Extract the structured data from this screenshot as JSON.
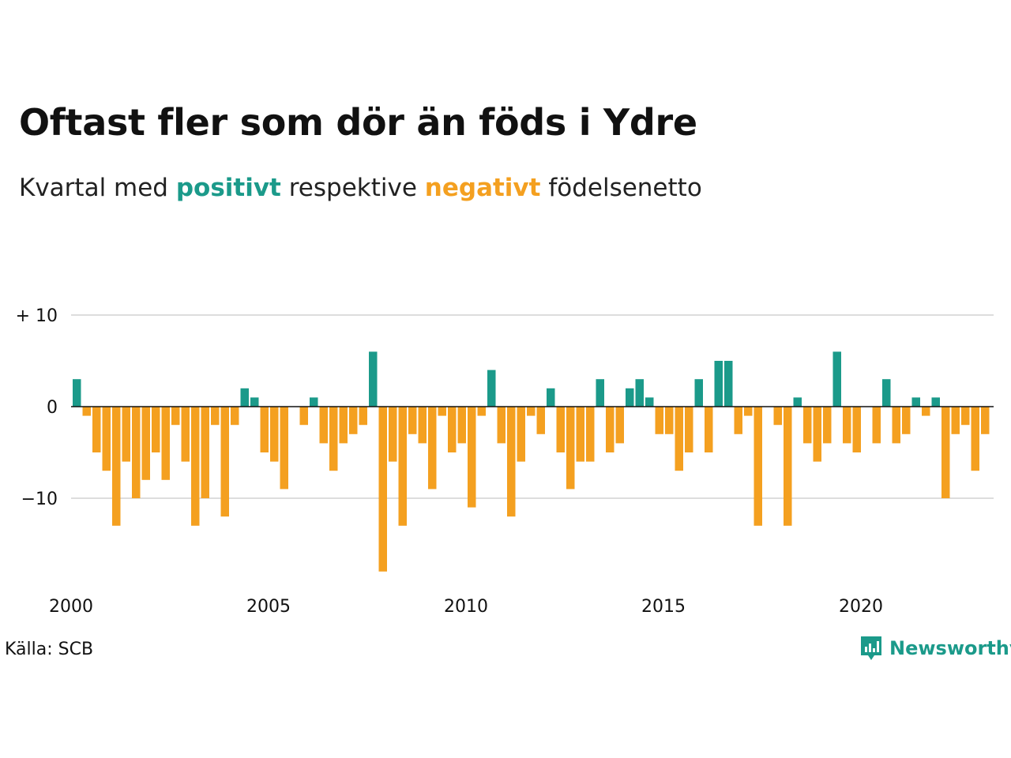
{
  "title": "Oftast fler som dör än föds i Ydre",
  "subtitle": {
    "part1": "Kvartal med ",
    "positive_word": "positivt",
    "part2": " respektive ",
    "negative_word": "negativt",
    "part3": " födelsenetto"
  },
  "source": "Källa: SCB",
  "logo": {
    "text": "Newsworthy",
    "icon": "newsworthy-chart-icon"
  },
  "colors": {
    "positive": "#1b9a8a",
    "negative": "#f4a020",
    "grid": "#dddddd",
    "zero": "#111111"
  },
  "chart_data": {
    "type": "bar",
    "x_start_year": 2000,
    "periods_per_year": 4,
    "x_tick_labels": [
      "2000",
      "2005",
      "2010",
      "2015",
      "2020"
    ],
    "x_tick_years": [
      2000,
      2005,
      2010,
      2015,
      2020
    ],
    "y_ticks": [
      10,
      0,
      -10
    ],
    "y_tick_labels": [
      "+ 10",
      "0",
      "−10"
    ],
    "ylim": [
      -19,
      10
    ],
    "grid": true,
    "values": [
      3,
      -1,
      -5,
      -7,
      -13,
      -6,
      -10,
      -8,
      -5,
      -8,
      -2,
      -6,
      -13,
      -10,
      -2,
      -12,
      -2,
      2,
      1,
      -5,
      -6,
      -9,
      0,
      -2,
      1,
      -4,
      -7,
      -4,
      -3,
      -2,
      6,
      -18,
      -6,
      -13,
      -3,
      -4,
      -9,
      -1,
      -5,
      -4,
      -11,
      -1,
      4,
      -4,
      -12,
      -6,
      -1,
      -3,
      2,
      -5,
      -9,
      -6,
      -6,
      3,
      -5,
      -4,
      2,
      3,
      1,
      -3,
      -3,
      -7,
      -5,
      3,
      -5,
      5,
      5,
      -3,
      -1,
      -13,
      0,
      -2,
      -13,
      1,
      -4,
      -6,
      -4,
      6,
      -4,
      -5,
      0,
      -4,
      3,
      -4,
      -3,
      1,
      -1,
      1,
      -10,
      -3,
      -2,
      -7,
      -3
    ]
  }
}
